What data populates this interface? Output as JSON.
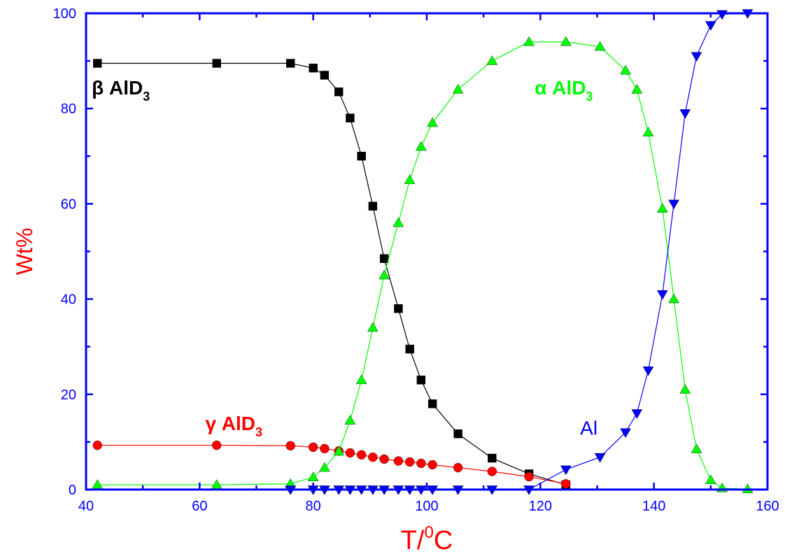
{
  "chart_data": {
    "type": "line",
    "xlabel": {
      "base": "T/",
      "sup": "0",
      "rest": "C"
    },
    "ylabel": "Wt%",
    "xlim": [
      40,
      160
    ],
    "ylim": [
      0,
      100
    ],
    "xticks": [
      40,
      60,
      80,
      100,
      120,
      140,
      160
    ],
    "yticks": [
      0,
      20,
      40,
      60,
      80,
      100
    ],
    "grid": false,
    "legend": "none",
    "colors": {
      "axis": "#0000ff",
      "x_title": "#ff0000",
      "y_title": "#ff0000"
    },
    "series": [
      {
        "name": "β AlD3",
        "label": {
          "greek": "β",
          "main": " AlD",
          "sub": "3"
        },
        "color": "#000000",
        "marker": "square",
        "label_at": [
          41,
          83
        ],
        "x": [
          42,
          63,
          76,
          80,
          82,
          84.5,
          86.5,
          88.5,
          90.5,
          92.5,
          95,
          97,
          99,
          101,
          105.5,
          111.5,
          118,
          124.5
        ],
        "y": [
          89.5,
          89.5,
          89.5,
          88.5,
          87,
          83.5,
          78,
          70,
          59.5,
          48.5,
          38,
          29.5,
          23,
          18,
          11.7,
          6.6,
          3.3,
          1
        ]
      },
      {
        "name": "γ AlD3",
        "label": {
          "greek": "γ",
          "main": " AlD",
          "sub": "3"
        },
        "color": "#ff0000",
        "marker": "circle",
        "label_at": [
          61,
          12.5
        ],
        "x": [
          42,
          63,
          76,
          80,
          82,
          84.5,
          86.5,
          88.5,
          90.5,
          92.5,
          95,
          97,
          99,
          101,
          105.5,
          111.5,
          118,
          124.5
        ],
        "y": [
          9.3,
          9.3,
          9.2,
          8.9,
          8.6,
          8.1,
          7.7,
          7.3,
          6.8,
          6.4,
          6,
          5.8,
          5.5,
          5.2,
          4.6,
          3.8,
          2.7,
          1.2
        ]
      },
      {
        "name": "α AlD3",
        "label": {
          "greek": "α",
          "main": " AlD",
          "sub": "3"
        },
        "color": "#00ff00",
        "marker": "triangle-up",
        "label_at": [
          119,
          83
        ],
        "x": [
          42,
          63,
          76,
          80,
          82,
          84.5,
          86.5,
          88.5,
          90.5,
          92.5,
          95,
          97,
          99,
          101,
          105.5,
          111.5,
          118,
          124.5,
          130.5,
          135,
          137,
          139,
          141.5,
          143.5,
          145.5,
          147.5,
          150,
          152,
          156.5
        ],
        "y": [
          1,
          1,
          1.2,
          2.6,
          4.6,
          8,
          14.5,
          23,
          34,
          45,
          56,
          65,
          72,
          77,
          84,
          90,
          94,
          94,
          93,
          88,
          84,
          75,
          59,
          40,
          21,
          8.5,
          2,
          0.3,
          0.1
        ]
      },
      {
        "name": "Al",
        "label": {
          "greek": "",
          "main": "Al",
          "sub": ""
        },
        "color": "#0000ff",
        "marker": "triangle-down",
        "label_at": [
          127,
          11.5
        ],
        "x": [
          76,
          80,
          82,
          84.5,
          86.5,
          88.5,
          90.5,
          92.5,
          95,
          97,
          99,
          101,
          105.5,
          111.5,
          118,
          124.5,
          130.5,
          135,
          137,
          139,
          141.5,
          143.5,
          145.5,
          147.5,
          150,
          152,
          156.5
        ],
        "y": [
          0,
          0,
          0,
          0,
          0,
          0,
          0,
          0,
          0,
          0,
          0,
          0,
          0,
          0,
          0,
          4.2,
          6.8,
          12,
          16,
          25,
          41,
          60,
          79,
          91,
          97.5,
          99.8,
          100
        ]
      }
    ]
  }
}
